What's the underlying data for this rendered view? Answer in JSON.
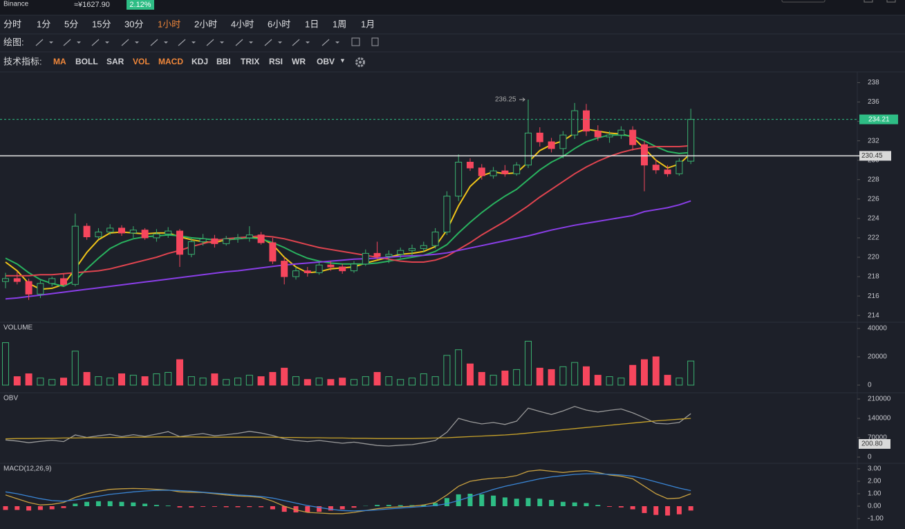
{
  "header": {
    "exchange": "Binance",
    "price": "≈¥1627.90",
    "change": "2.12%"
  },
  "toolbar": {
    "intervals": [
      {
        "label": "分时",
        "active": false
      },
      {
        "label": "1分",
        "active": false
      },
      {
        "label": "5分",
        "active": false
      },
      {
        "label": "15分",
        "active": false
      },
      {
        "label": "30分",
        "active": false
      },
      {
        "label": "1小时",
        "active": true
      },
      {
        "label": "2小时",
        "active": false
      },
      {
        "label": "4小时",
        "active": false
      },
      {
        "label": "6小时",
        "active": false
      },
      {
        "label": "1日",
        "active": false
      },
      {
        "label": "1周",
        "active": false
      },
      {
        "label": "1月",
        "active": false
      }
    ],
    "drawing_label": "绘图:",
    "indicators_label": "技术指标:",
    "indicators": [
      {
        "label": "MA",
        "active": true
      },
      {
        "label": "BOLL",
        "active": false
      },
      {
        "label": "SAR",
        "active": false
      },
      {
        "label": "VOL",
        "active": true
      },
      {
        "label": "MACD",
        "active": true
      },
      {
        "label": "KDJ",
        "active": false
      },
      {
        "label": "BBI",
        "active": false
      },
      {
        "label": "TRIX",
        "active": false
      },
      {
        "label": "RSI",
        "active": false
      },
      {
        "label": "WR",
        "active": false
      },
      {
        "label": "OBV",
        "active": false
      }
    ]
  },
  "chart_data": [
    {
      "type": "candlestick",
      "up_color": "#3bb371",
      "down_color": "#f6465d",
      "ylim": [
        213.3,
        239.1
      ],
      "yticks": [
        214,
        216,
        218,
        220,
        222,
        224,
        226,
        228,
        230,
        232,
        234,
        236,
        238
      ],
      "open": [
        217.5,
        217.8,
        217.5,
        216.2,
        217.3,
        217.8,
        217.2,
        223.2,
        222.1,
        222.6,
        223.0,
        222.5,
        222.8,
        222.0,
        222.4,
        222.7,
        220.3,
        221.6,
        221.9,
        221.4,
        221.9,
        222.0,
        222.3,
        221.5,
        219.6,
        218.0,
        218.6,
        218.4,
        219.2,
        219.0,
        218.6,
        219.3,
        220.4,
        220.1,
        220.3,
        220.7,
        220.9,
        221.2,
        222.6,
        226.3,
        229.8,
        229.2,
        228.4,
        228.9,
        228.6,
        229.5,
        232.8,
        231.9,
        231.2,
        232.6,
        235.1,
        233.0,
        232.4,
        232.6,
        233.1,
        231.6,
        229.5,
        229.0,
        228.6,
        229.9
      ],
      "high": [
        218.4,
        218.5,
        217.8,
        217.6,
        218.0,
        218.3,
        224.5,
        223.5,
        223.0,
        223.4,
        223.3,
        223.2,
        223.0,
        222.9,
        223.1,
        222.9,
        222.0,
        222.4,
        222.3,
        222.2,
        222.4,
        223.2,
        222.6,
        222.0,
        220.0,
        219.0,
        219.0,
        219.5,
        219.6,
        219.3,
        219.6,
        220.8,
        221.6,
        220.7,
        221.0,
        221.3,
        221.6,
        223.0,
        226.8,
        230.6,
        230.2,
        229.6,
        229.3,
        229.5,
        229.8,
        236.25,
        233.4,
        232.3,
        233.0,
        235.9,
        235.8,
        233.6,
        233.0,
        233.5,
        233.5,
        232.0,
        230.1,
        229.5,
        230.2,
        235.3
      ],
      "low": [
        216.8,
        217.2,
        215.6,
        215.8,
        217.0,
        217.0,
        217.0,
        221.8,
        221.9,
        222.3,
        222.2,
        222.0,
        221.8,
        221.6,
        222.0,
        219.0,
        220.0,
        221.2,
        221.0,
        221.2,
        221.5,
        221.6,
        221.3,
        219.3,
        217.2,
        217.7,
        218.0,
        218.2,
        218.6,
        218.3,
        218.4,
        219.1,
        219.8,
        219.4,
        219.9,
        220.2,
        220.5,
        220.9,
        222.3,
        225.8,
        228.9,
        228.0,
        228.1,
        228.3,
        228.4,
        229.2,
        231.4,
        230.8,
        230.2,
        232.2,
        232.5,
        232.0,
        231.8,
        232.2,
        231.0,
        226.8,
        228.6,
        228.3,
        228.4,
        229.6
      ],
      "close": [
        217.8,
        217.5,
        216.2,
        217.3,
        217.8,
        217.2,
        223.2,
        222.1,
        222.6,
        223.0,
        222.5,
        222.8,
        222.0,
        222.4,
        222.7,
        220.3,
        221.6,
        221.9,
        221.4,
        221.9,
        222.0,
        222.3,
        221.5,
        219.6,
        218.0,
        218.6,
        218.4,
        219.2,
        219.0,
        218.6,
        219.3,
        220.4,
        220.1,
        220.3,
        220.7,
        220.9,
        221.2,
        222.6,
        226.3,
        229.8,
        229.2,
        228.4,
        228.9,
        228.6,
        229.5,
        232.8,
        231.9,
        231.2,
        232.6,
        235.1,
        233.0,
        232.4,
        232.6,
        233.1,
        231.6,
        229.5,
        229.0,
        228.6,
        229.9,
        234.21
      ],
      "overlays": [
        {
          "color": "#f0c419",
          "values": [
            219.5,
            218.6,
            217.3,
            216.7,
            216.8,
            217.2,
            218.8,
            220.5,
            221.8,
            222.5,
            222.6,
            222.5,
            222.4,
            222.5,
            222.5,
            222.1,
            221.8,
            221.6,
            221.5,
            221.8,
            221.9,
            222.0,
            222.0,
            221.3,
            220.0,
            219.0,
            218.4,
            218.5,
            218.8,
            218.9,
            219.0,
            219.4,
            219.7,
            220.0,
            220.3,
            220.4,
            220.6,
            221.1,
            222.8,
            225.3,
            227.3,
            228.4,
            228.8,
            228.6,
            228.7,
            229.8,
            231.0,
            231.6,
            232.0,
            232.8,
            233.2,
            233.0,
            232.8,
            232.7,
            232.4,
            231.2,
            230.0,
            229.2,
            229.6,
            230.7
          ]
        },
        {
          "color": "#29b35f",
          "values": [
            219.9,
            219.3,
            218.4,
            217.7,
            217.3,
            217.0,
            217.6,
            218.8,
            219.9,
            220.9,
            221.5,
            221.9,
            222.1,
            222.2,
            222.3,
            222.2,
            222.0,
            221.9,
            221.8,
            221.8,
            221.9,
            222.0,
            221.9,
            221.5,
            221.0,
            220.4,
            219.9,
            219.6,
            219.4,
            219.3,
            219.3,
            219.3,
            219.4,
            219.6,
            219.8,
            220.0,
            220.2,
            220.6,
            221.3,
            222.5,
            223.6,
            224.6,
            225.5,
            226.3,
            227.0,
            228.0,
            229.0,
            229.8,
            230.4,
            231.2,
            231.9,
            232.3,
            232.6,
            232.6,
            232.5,
            232.0,
            231.4,
            230.9,
            230.7,
            230.8
          ]
        },
        {
          "color": "#e0444f",
          "values": [
            218.1,
            218.1,
            218.1,
            218.2,
            218.2,
            218.3,
            218.4,
            218.5,
            218.6,
            218.8,
            219.1,
            219.4,
            219.7,
            220.0,
            220.4,
            220.7,
            221.1,
            221.4,
            221.7,
            221.9,
            222.0,
            222.1,
            222.2,
            222.1,
            221.9,
            221.6,
            221.3,
            221.0,
            220.8,
            220.6,
            220.4,
            220.2,
            220.0,
            219.8,
            219.6,
            219.5,
            219.5,
            219.7,
            220.1,
            220.8,
            221.5,
            222.3,
            223.0,
            223.7,
            224.5,
            225.3,
            226.2,
            227.0,
            227.8,
            228.6,
            229.3,
            229.9,
            230.4,
            230.8,
            231.1,
            231.3,
            231.4,
            231.4,
            231.4,
            231.5
          ]
        },
        {
          "color": "#8a3ee8",
          "values": [
            215.7,
            215.8,
            215.95,
            216.1,
            216.25,
            216.4,
            216.55,
            216.7,
            216.85,
            217.0,
            217.15,
            217.3,
            217.45,
            217.6,
            217.75,
            217.9,
            218.05,
            218.2,
            218.35,
            218.5,
            218.6,
            218.75,
            218.9,
            219.05,
            219.2,
            219.3,
            219.4,
            219.5,
            219.6,
            219.7,
            219.8,
            219.85,
            219.9,
            220.0,
            220.1,
            220.15,
            220.2,
            220.3,
            220.45,
            220.7,
            220.95,
            221.2,
            221.45,
            221.7,
            221.95,
            222.2,
            222.5,
            222.8,
            223.05,
            223.3,
            223.5,
            223.7,
            223.9,
            224.1,
            224.3,
            224.7,
            224.9,
            225.1,
            225.4,
            225.8
          ]
        }
      ],
      "last_price": 234.21,
      "marked_price": 230.45,
      "max_label": 236.25
    },
    {
      "type": "bar",
      "title": "VOLUME",
      "ylim": [
        -5400,
        44400
      ],
      "yticks": [
        0,
        20000,
        40000
      ],
      "values": [
        30000,
        6000,
        8000,
        5000,
        4000,
        5000,
        24000,
        9000,
        6000,
        5000,
        8000,
        7000,
        6000,
        8000,
        9000,
        18000,
        6000,
        5000,
        8000,
        4000,
        5000,
        7000,
        6000,
        9000,
        12000,
        6000,
        4000,
        5000,
        4000,
        5000,
        4000,
        6000,
        9000,
        6000,
        4000,
        5000,
        8000,
        6000,
        21000,
        25000,
        15000,
        9000,
        7000,
        10000,
        11000,
        31000,
        12000,
        11000,
        13000,
        16000,
        13000,
        7000,
        6000,
        5000,
        14000,
        18000,
        20000,
        7000,
        5000,
        17000
      ]
    },
    {
      "type": "line",
      "title": "OBV",
      "ylim": [
        -22500,
        232500
      ],
      "yticks": [
        0,
        70000,
        140000,
        210000
      ],
      "price_tag": "200.80",
      "series": [
        {
          "color": "#9a9a9a",
          "values": [
            62000,
            58000,
            52000,
            57000,
            61000,
            56000,
            80000,
            71000,
            77000,
            82000,
            74000,
            81000,
            75000,
            83000,
            92000,
            74000,
            80000,
            85000,
            77000,
            81000,
            86000,
            93000,
            87000,
            78000,
            66000,
            60000,
            56000,
            60000,
            55000,
            50000,
            54000,
            48000,
            42000,
            40000,
            43000,
            45000,
            52000,
            60000,
            90000,
            140000,
            128000,
            120000,
            125000,
            118000,
            130000,
            177000,
            165000,
            154000,
            167000,
            183000,
            170000,
            163000,
            169000,
            174000,
            160000,
            142000,
            122000,
            120000,
            125000,
            157000
          ]
        },
        {
          "color": "#c8a32a",
          "values": [
            66000,
            67000,
            67000,
            68000,
            68000,
            69000,
            69000,
            70000,
            70000,
            71000,
            71000,
            72000,
            72000,
            73000,
            73000,
            73000,
            73000,
            72000,
            72000,
            72000,
            72000,
            72000,
            72000,
            72000,
            71000,
            71000,
            70000,
            70000,
            69000,
            69000,
            68000,
            68000,
            67000,
            67000,
            67000,
            67000,
            68000,
            69000,
            70000,
            72000,
            74000,
            76000,
            78000,
            80000,
            83000,
            87000,
            91000,
            95000,
            99000,
            103000,
            107000,
            111000,
            115000,
            119000,
            123000,
            127000,
            131000,
            134000,
            137000,
            140000
          ]
        }
      ]
    },
    {
      "type": "macd",
      "title": "MACD(12,26,9)",
      "up_color": "#2ebd85",
      "down_color": "#f6465d",
      "ylim": [
        -1.83,
        3.44
      ],
      "yticks": [
        {
          "value": -1,
          "label": "-1.00"
        },
        {
          "value": 0,
          "label": "0.00"
        },
        {
          "value": 1,
          "label": "1.00"
        },
        {
          "value": 2,
          "label": "2.00"
        },
        {
          "value": 3,
          "label": "3.00"
        }
      ],
      "histogram": [
        -0.3,
        -0.3,
        -0.35,
        -0.3,
        -0.25,
        -0.15,
        0.2,
        0.35,
        0.4,
        0.4,
        0.35,
        0.3,
        0.2,
        0.1,
        0.05,
        -0.1,
        -0.1,
        -0.05,
        -0.05,
        -0.08,
        -0.08,
        -0.07,
        -0.08,
        -0.25,
        -0.45,
        -0.5,
        -0.5,
        -0.45,
        -0.35,
        -0.25,
        -0.12,
        0.02,
        0.1,
        0.1,
        0.08,
        0.08,
        0.1,
        0.25,
        0.65,
        0.95,
        1.0,
        0.95,
        0.85,
        0.7,
        0.6,
        0.65,
        0.6,
        0.5,
        0.35,
        0.3,
        0.25,
        0.1,
        -0.05,
        -0.1,
        -0.25,
        -0.55,
        -0.7,
        -0.75,
        -0.65,
        -0.35
      ],
      "series": [
        {
          "color": "#c8a040",
          "values": [
            0.9,
            0.6,
            0.3,
            0.1,
            0.15,
            0.3,
            0.7,
            1.0,
            1.2,
            1.35,
            1.4,
            1.42,
            1.4,
            1.35,
            1.3,
            1.15,
            1.12,
            1.1,
            1.0,
            0.9,
            0.82,
            0.78,
            0.7,
            0.4,
            0.0,
            -0.3,
            -0.5,
            -0.55,
            -0.6,
            -0.6,
            -0.5,
            -0.35,
            -0.2,
            -0.1,
            -0.05,
            0.0,
            0.1,
            0.3,
            0.9,
            1.6,
            2.0,
            2.15,
            2.25,
            2.3,
            2.45,
            2.8,
            2.9,
            2.8,
            2.7,
            2.8,
            2.85,
            2.7,
            2.5,
            2.4,
            2.2,
            1.6,
            1.0,
            0.6,
            0.65,
            1.0
          ]
        },
        {
          "color": "#3a86d6",
          "values": [
            1.15,
            1.0,
            0.8,
            0.6,
            0.45,
            0.4,
            0.5,
            0.65,
            0.8,
            0.95,
            1.05,
            1.15,
            1.22,
            1.27,
            1.28,
            1.25,
            1.2,
            1.12,
            1.05,
            0.98,
            0.9,
            0.85,
            0.78,
            0.65,
            0.45,
            0.25,
            0.05,
            -0.1,
            -0.25,
            -0.35,
            -0.38,
            -0.35,
            -0.3,
            -0.22,
            -0.15,
            -0.08,
            -0.02,
            0.05,
            0.2,
            0.45,
            0.75,
            1.05,
            1.35,
            1.6,
            1.8,
            2.0,
            2.2,
            2.35,
            2.45,
            2.55,
            2.6,
            2.6,
            2.55,
            2.5,
            2.4,
            2.2,
            1.95,
            1.7,
            1.45,
            1.25
          ]
        }
      ]
    }
  ]
}
